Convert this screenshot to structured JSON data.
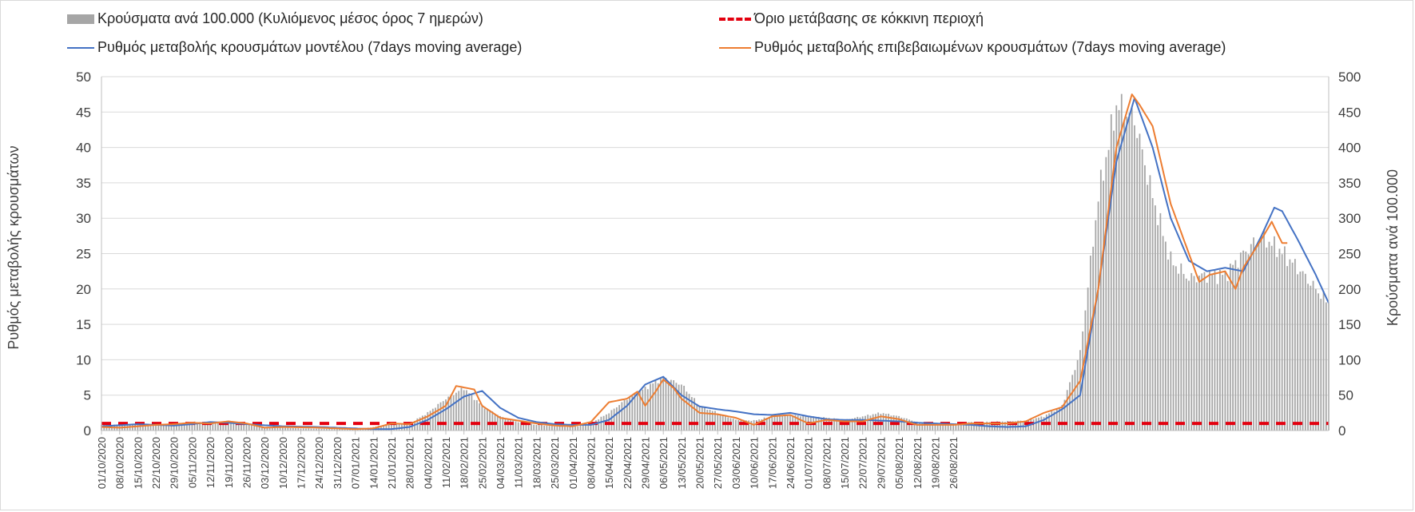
{
  "chart_data": {
    "type": "bar+line",
    "title": "",
    "ylabel": "Ρυθμός μεταβολής κρουσμάτων",
    "y2label": "Κρούσματα ανά 100.000",
    "ylim": [
      0,
      50
    ],
    "y2lim": [
      0,
      500
    ],
    "yticks": [
      "0",
      "5",
      "10",
      "15",
      "20",
      "25",
      "30",
      "35",
      "40",
      "45",
      "50"
    ],
    "y2ticks": [
      "0",
      "50",
      "100",
      "150",
      "200",
      "250",
      "300",
      "350",
      "400",
      "450",
      "500"
    ],
    "x_start": "2020-10-01",
    "x_end": "2021-08-31",
    "xticks": [
      "01/10/2020",
      "08/10/2020",
      "15/10/2020",
      "22/10/2020",
      "29/10/2020",
      "05/11/2020",
      "12/11/2020",
      "19/11/2020",
      "26/11/2020",
      "03/12/2020",
      "10/12/2020",
      "17/12/2020",
      "24/12/2020",
      "31/12/2020",
      "07/01/2021",
      "14/01/2021",
      "21/01/2021",
      "28/01/2021",
      "04/02/2021",
      "11/02/2021",
      "18/02/2021",
      "25/02/2021",
      "04/03/2021",
      "11/03/2021",
      "18/03/2021",
      "25/03/2021",
      "01/04/2021",
      "08/04/2021",
      "15/04/2021",
      "22/04/2021",
      "29/04/2021",
      "06/05/2021",
      "13/05/2021",
      "20/05/2021",
      "27/05/2021",
      "03/06/2021",
      "10/06/2021",
      "17/06/2021",
      "24/06/2021",
      "01/07/2021",
      "08/07/2021",
      "15/07/2021",
      "22/07/2021",
      "29/07/2021",
      "05/08/2021",
      "12/08/2021",
      "19/08/2021",
      "26/08/2021"
    ],
    "legend": {
      "bars": "Κρούσματα ανά 100.000 (Κυλιόμενος μέσος όρος 7 ημερών)",
      "threshold": "Όριο μετάβασης σε κόκκινη περιοχή",
      "model": "Ρυθμός μεταβολής κρουσμάτων μοντέλου (7days moving average)",
      "confirmed": "Ρυθμός μεταβολής επιβεβαιωμένων κρουσμάτων (7days moving average)"
    },
    "colors": {
      "bars": "#a6a6a6",
      "threshold": "#e3000f",
      "model": "#4472c4",
      "confirmed": "#ed7d31",
      "grid": "#d9d9d9"
    },
    "threshold_value": 1,
    "series": [
      {
        "name": "Κρούσματα ανά 100.000 (Κυλιόμενος μέσος όρος 7 ημερών)",
        "axis": "right",
        "kind": "bar",
        "anchors": [
          [
            0,
            8
          ],
          [
            14,
            8
          ],
          [
            28,
            9
          ],
          [
            35,
            12
          ],
          [
            49,
            12
          ],
          [
            56,
            9
          ],
          [
            63,
            5
          ],
          [
            77,
            3
          ],
          [
            91,
            2
          ],
          [
            98,
            1
          ],
          [
            105,
            5
          ],
          [
            112,
            10
          ],
          [
            119,
            10
          ],
          [
            126,
            25
          ],
          [
            133,
            45
          ],
          [
            140,
            60
          ],
          [
            147,
            35
          ],
          [
            154,
            20
          ],
          [
            161,
            12
          ],
          [
            168,
            8
          ],
          [
            175,
            6
          ],
          [
            182,
            5
          ],
          [
            189,
            10
          ],
          [
            196,
            25
          ],
          [
            203,
            45
          ],
          [
            210,
            60
          ],
          [
            217,
            75
          ],
          [
            224,
            65
          ],
          [
            231,
            35
          ],
          [
            238,
            25
          ],
          [
            245,
            15
          ],
          [
            252,
            14
          ],
          [
            259,
            20
          ],
          [
            266,
            22
          ],
          [
            273,
            20
          ],
          [
            280,
            18
          ],
          [
            287,
            15
          ],
          [
            294,
            20
          ],
          [
            301,
            25
          ],
          [
            308,
            20
          ],
          [
            315,
            12
          ],
          [
            322,
            10
          ],
          [
            329,
            10
          ],
          [
            336,
            12
          ],
          [
            343,
            12
          ],
          [
            350,
            13
          ],
          [
            357,
            14
          ],
          [
            364,
            20
          ],
          [
            371,
            35
          ],
          [
            378,
            110
          ],
          [
            385,
            330
          ],
          [
            392,
            460
          ],
          [
            399,
            440
          ],
          [
            406,
            330
          ],
          [
            413,
            240
          ],
          [
            420,
            215
          ],
          [
            427,
            220
          ],
          [
            434,
            220
          ],
          [
            441,
            250
          ],
          [
            448,
            275
          ],
          [
            455,
            255
          ],
          [
            462,
            230
          ],
          [
            469,
            200
          ],
          [
            474,
            180
          ]
        ]
      },
      {
        "name": "Ρυθμός μεταβολής κρουσμάτων μοντέλου (7days moving average)",
        "axis": "left",
        "kind": "line",
        "anchors": [
          [
            0,
            0.6
          ],
          [
            14,
            0.9
          ],
          [
            28,
            0.7
          ],
          [
            35,
            0.9
          ],
          [
            42,
            1.2
          ],
          [
            49,
            1.1
          ],
          [
            56,
            0.9
          ],
          [
            70,
            0.6
          ],
          [
            84,
            0.5
          ],
          [
            98,
            0.3
          ],
          [
            105,
            0.2
          ],
          [
            112,
            0.2
          ],
          [
            119,
            0.5
          ],
          [
            126,
            1.5
          ],
          [
            133,
            3.0
          ],
          [
            140,
            4.8
          ],
          [
            147,
            5.6
          ],
          [
            154,
            3.2
          ],
          [
            161,
            1.8
          ],
          [
            168,
            1.2
          ],
          [
            175,
            0.9
          ],
          [
            182,
            0.8
          ],
          [
            189,
            0.8
          ],
          [
            196,
            1.5
          ],
          [
            203,
            3.5
          ],
          [
            210,
            6.5
          ],
          [
            217,
            7.6
          ],
          [
            224,
            5.0
          ],
          [
            231,
            3.4
          ],
          [
            238,
            3.0
          ],
          [
            245,
            2.7
          ],
          [
            252,
            2.3
          ],
          [
            259,
            2.2
          ],
          [
            266,
            2.5
          ],
          [
            273,
            2.0
          ],
          [
            280,
            1.6
          ],
          [
            287,
            1.5
          ],
          [
            294,
            1.5
          ],
          [
            301,
            1.4
          ],
          [
            308,
            1.3
          ],
          [
            315,
            1.1
          ],
          [
            322,
            1.0
          ],
          [
            329,
            0.9
          ],
          [
            336,
            0.8
          ],
          [
            343,
            0.6
          ],
          [
            350,
            0.5
          ],
          [
            357,
            0.6
          ],
          [
            364,
            1.5
          ],
          [
            371,
            3.0
          ],
          [
            378,
            5.0
          ],
          [
            385,
            20.0
          ],
          [
            392,
            38.0
          ],
          [
            399,
            47.0
          ],
          [
            406,
            40.0
          ],
          [
            413,
            30.0
          ],
          [
            420,
            24.0
          ],
          [
            427,
            22.5
          ],
          [
            434,
            23.0
          ],
          [
            441,
            22.5
          ],
          [
            448,
            27.5
          ],
          [
            453,
            31.5
          ],
          [
            456,
            31.0
          ],
          [
            462,
            27.0
          ],
          [
            469,
            22.0
          ],
          [
            474,
            18.0
          ]
        ]
      },
      {
        "name": "Ρυθμός μεταβολής επιβεβαιωμένων κρουσμάτων (7days moving average)",
        "axis": "left",
        "kind": "line",
        "anchors": [
          [
            0,
            0.5
          ],
          [
            7,
            0.4
          ],
          [
            14,
            0.6
          ],
          [
            21,
            0.8
          ],
          [
            28,
            0.9
          ],
          [
            35,
            1.1
          ],
          [
            42,
            1.0
          ],
          [
            49,
            1.3
          ],
          [
            56,
            1.0
          ],
          [
            63,
            0.4
          ],
          [
            70,
            0.5
          ],
          [
            84,
            0.4
          ],
          [
            98,
            0.2
          ],
          [
            105,
            0.3
          ],
          [
            112,
            1.0
          ],
          [
            119,
            0.9
          ],
          [
            126,
            2.0
          ],
          [
            133,
            3.5
          ],
          [
            137,
            6.3
          ],
          [
            144,
            5.8
          ],
          [
            147,
            3.5
          ],
          [
            154,
            1.8
          ],
          [
            161,
            1.4
          ],
          [
            168,
            1.0
          ],
          [
            175,
            0.7
          ],
          [
            182,
            0.6
          ],
          [
            189,
            1.2
          ],
          [
            196,
            4.0
          ],
          [
            203,
            4.5
          ],
          [
            207,
            5.5
          ],
          [
            210,
            3.5
          ],
          [
            214,
            5.5
          ],
          [
            217,
            7.2
          ],
          [
            221,
            6.0
          ],
          [
            224,
            4.5
          ],
          [
            231,
            2.5
          ],
          [
            238,
            2.3
          ],
          [
            245,
            1.8
          ],
          [
            252,
            0.8
          ],
          [
            259,
            2.0
          ],
          [
            266,
            2.2
          ],
          [
            273,
            1.0
          ],
          [
            280,
            1.5
          ],
          [
            287,
            1.3
          ],
          [
            294,
            1.3
          ],
          [
            301,
            2.0
          ],
          [
            308,
            1.6
          ],
          [
            315,
            0.8
          ],
          [
            322,
            0.8
          ],
          [
            329,
            0.8
          ],
          [
            336,
            1.0
          ],
          [
            343,
            1.0
          ],
          [
            350,
            1.0
          ],
          [
            357,
            1.3
          ],
          [
            364,
            2.5
          ],
          [
            371,
            3.3
          ],
          [
            378,
            7.0
          ],
          [
            385,
            20.0
          ],
          [
            392,
            40.0
          ],
          [
            398,
            47.5
          ],
          [
            401,
            46.0
          ],
          [
            406,
            43.0
          ],
          [
            413,
            32.0
          ],
          [
            420,
            25.0
          ],
          [
            424,
            21.0
          ],
          [
            428,
            22.0
          ],
          [
            434,
            22.5
          ],
          [
            438,
            20.0
          ],
          [
            441,
            23.0
          ],
          [
            448,
            27.0
          ],
          [
            452,
            29.5
          ],
          [
            456,
            26.5
          ],
          [
            458,
            26.5
          ]
        ]
      },
      {
        "name": "Όριο μετάβασης σε κόκκινη περιοχή",
        "axis": "left",
        "kind": "threshold",
        "value": 1
      }
    ]
  }
}
